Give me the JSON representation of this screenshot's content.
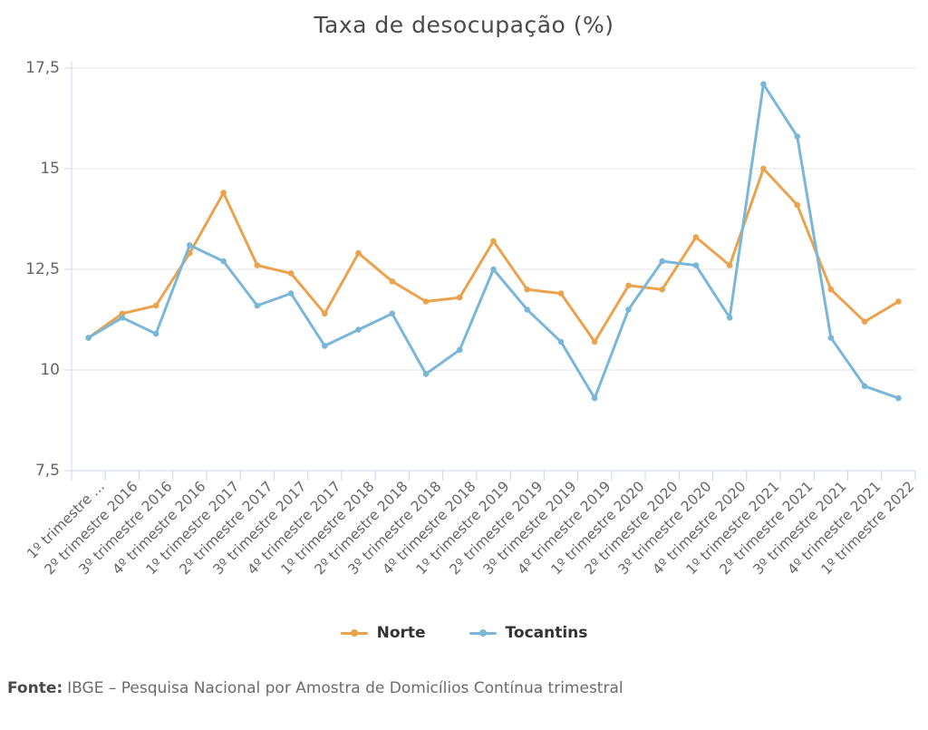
{
  "title": "Taxa de desocupação (%)",
  "legend": {
    "items": [
      {
        "label": "Norte"
      },
      {
        "label": "Tocantins"
      }
    ]
  },
  "footer": {
    "label": "Fonte:",
    "text": "IBGE – Pesquisa Nacional por Amostra de Domicílios Contínua trimestral"
  },
  "chart_data": {
    "type": "line",
    "title": "Taxa de desocupação (%)",
    "categories": [
      "1º trimestre ...",
      "2º trimestre 2016",
      "3º trimestre 2016",
      "4º trimestre 2016",
      "1º trimestre 2017",
      "2º trimestre 2017",
      "3º trimestre 2017",
      "4º trimestre 2017",
      "1º trimestre 2018",
      "2º trimestre 2018",
      "3º trimestre 2018",
      "4º trimestre 2018",
      "1º trimestre 2019",
      "2º trimestre 2019",
      "3º trimestre 2019",
      "4º trimestre 2019",
      "1º trimestre 2020",
      "2º trimestre 2020",
      "3º trimestre 2020",
      "4º trimestre 2020",
      "1º trimestre 2021",
      "2º trimestre 2021",
      "3º trimestre 2021",
      "4º trimestre 2021",
      "1º trimestre 2022"
    ],
    "series": [
      {
        "name": "Norte",
        "color": "#eba24c",
        "values": [
          10.8,
          11.4,
          11.6,
          12.9,
          14.4,
          12.6,
          12.4,
          11.4,
          12.9,
          12.2,
          11.7,
          11.8,
          13.2,
          12.0,
          11.9,
          10.7,
          12.1,
          12.0,
          13.3,
          12.6,
          15.0,
          14.1,
          12.0,
          11.2,
          11.7
        ]
      },
      {
        "name": "Tocantins",
        "color": "#7ab6d8",
        "values": [
          10.8,
          11.3,
          10.9,
          13.1,
          12.7,
          11.6,
          11.9,
          10.6,
          11.0,
          11.4,
          9.9,
          10.5,
          12.5,
          11.5,
          10.7,
          9.3,
          11.5,
          12.7,
          12.6,
          11.3,
          17.1,
          15.8,
          10.8,
          9.6,
          9.3
        ]
      }
    ],
    "xlabel": "",
    "ylabel": "",
    "ylim": [
      7.5,
      17.5
    ],
    "yticks": [
      7.5,
      10,
      12.5,
      15,
      17.5
    ],
    "ytick_labels": [
      "7,5",
      "10",
      "12,5",
      "15",
      "17,5"
    ],
    "grid": true,
    "legend_position": "bottom",
    "colors": {
      "grid": "#e6e6e6",
      "axis": "#c8d7e4",
      "tick": "#ccd5de",
      "label": "#666666"
    }
  }
}
